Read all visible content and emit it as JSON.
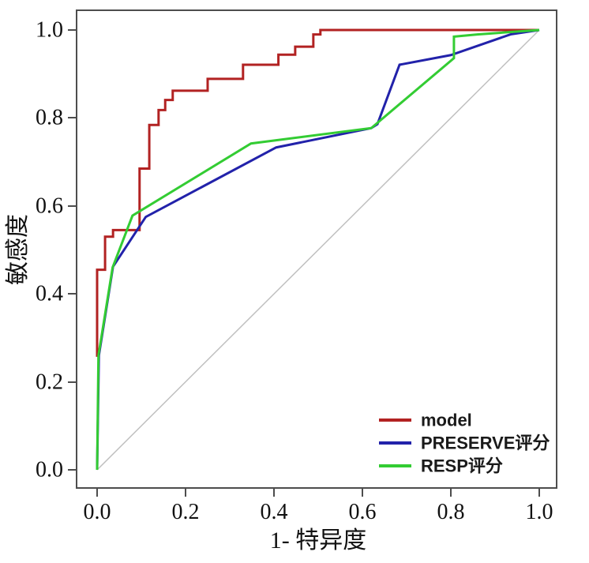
{
  "axes": {
    "x_ticks": [
      "0.0",
      "0.2",
      "0.4",
      "0.6",
      "0.8",
      "1.0"
    ],
    "y_ticks": [
      "0.0",
      "0.2",
      "0.4",
      "0.6",
      "0.8",
      "1.0"
    ]
  },
  "chart_data": {
    "type": "line",
    "subtype": "roc-curves",
    "title": "",
    "xlabel": "1- 特异度",
    "ylabel": "敏感度",
    "xlim": [
      0,
      1
    ],
    "ylim": [
      0,
      1
    ],
    "grid": false,
    "legend_position": "lower right",
    "frame_color": "#4d4d4d",
    "reference_line": {
      "from": [
        0,
        0
      ],
      "to": [
        1,
        1
      ],
      "color": "#c0c0c0"
    },
    "series": [
      {
        "name": "model",
        "color": "#b22222",
        "points": [
          [
            0,
            0.257
          ],
          [
            0,
            0.455
          ],
          [
            0.018,
            0.455
          ],
          [
            0.018,
            0.53
          ],
          [
            0.036,
            0.53
          ],
          [
            0.036,
            0.545
          ],
          [
            0.096,
            0.545
          ],
          [
            0.096,
            0.685
          ],
          [
            0.118,
            0.685
          ],
          [
            0.118,
            0.784
          ],
          [
            0.139,
            0.784
          ],
          [
            0.139,
            0.818
          ],
          [
            0.154,
            0.818
          ],
          [
            0.154,
            0.841
          ],
          [
            0.171,
            0.841
          ],
          [
            0.171,
            0.862
          ],
          [
            0.25,
            0.862
          ],
          [
            0.25,
            0.889
          ],
          [
            0.33,
            0.889
          ],
          [
            0.33,
            0.921
          ],
          [
            0.41,
            0.921
          ],
          [
            0.41,
            0.944
          ],
          [
            0.448,
            0.944
          ],
          [
            0.448,
            0.962
          ],
          [
            0.489,
            0.962
          ],
          [
            0.489,
            0.99
          ],
          [
            0.505,
            0.99
          ],
          [
            0.505,
            1.0
          ],
          [
            1.0,
            1.0
          ]
        ]
      },
      {
        "name": "PRESERVE评分",
        "color": "#2222aa",
        "points": [
          [
            0,
            0
          ],
          [
            0.004,
            0.26
          ],
          [
            0.036,
            0.462
          ],
          [
            0.11,
            0.575
          ],
          [
            0.405,
            0.733
          ],
          [
            0.62,
            0.777
          ],
          [
            0.634,
            0.786
          ],
          [
            0.684,
            0.921
          ],
          [
            0.8,
            0.943
          ],
          [
            0.935,
            0.99
          ],
          [
            1.0,
            1.0
          ]
        ]
      },
      {
        "name": "RESP评分",
        "color": "#33cc33",
        "points": [
          [
            0,
            0
          ],
          [
            0.003,
            0.26
          ],
          [
            0.035,
            0.46
          ],
          [
            0.08,
            0.578
          ],
          [
            0.348,
            0.742
          ],
          [
            0.62,
            0.777
          ],
          [
            0.807,
            0.936
          ],
          [
            0.807,
            0.985
          ],
          [
            0.86,
            0.99
          ],
          [
            1.0,
            1.0
          ]
        ]
      }
    ]
  }
}
